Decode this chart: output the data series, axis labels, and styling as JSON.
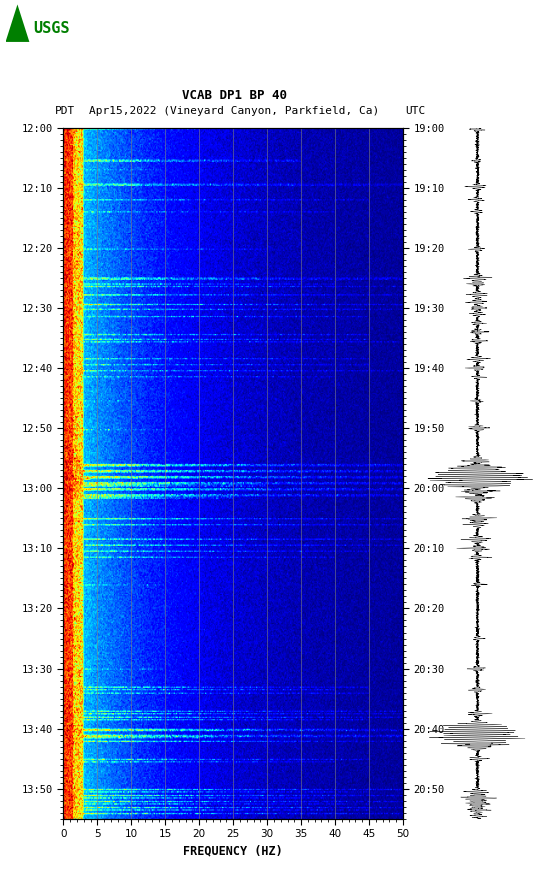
{
  "title_line1": "VCAB DP1 BP 40",
  "title_line2_left": "PDT",
  "title_line2_mid": "Apr15,2022 (Vineyard Canyon, Parkfield, Ca)",
  "title_line2_right": "UTC",
  "xlabel": "FREQUENCY (HZ)",
  "freq_ticks": [
    0,
    5,
    10,
    15,
    20,
    25,
    30,
    35,
    40,
    45,
    50
  ],
  "left_time_labels": [
    "12:00",
    "12:10",
    "12:20",
    "12:30",
    "12:40",
    "12:50",
    "13:00",
    "13:10",
    "13:20",
    "13:30",
    "13:40",
    "13:50"
  ],
  "right_time_labels": [
    "19:00",
    "19:10",
    "19:20",
    "19:30",
    "19:40",
    "19:50",
    "20:00",
    "20:10",
    "20:20",
    "20:30",
    "20:40",
    "20:50"
  ],
  "total_minutes": 115,
  "fig_bg": "#ffffff",
  "usgs_green": "#007f00",
  "vgrid_freqs": [
    5,
    10,
    15,
    20,
    25,
    30,
    35,
    40,
    45
  ],
  "fig_width": 5.52,
  "fig_height": 8.92
}
